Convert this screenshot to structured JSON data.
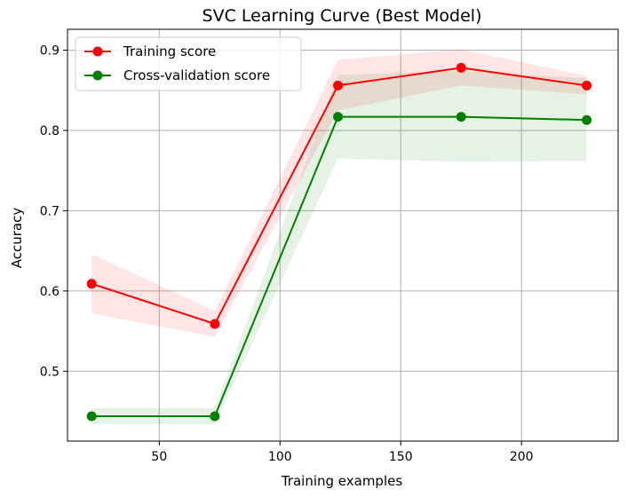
{
  "chart_data": {
    "type": "line",
    "title": "SVC Learning Curve (Best Model)",
    "xlabel": "Training examples",
    "ylabel": "Accuracy",
    "xlim": [
      12,
      240
    ],
    "ylim": [
      0.413,
      0.926
    ],
    "xticks": [
      50,
      100,
      150,
      200
    ],
    "yticks": [
      0.5,
      0.6,
      0.7,
      0.8,
      0.9
    ],
    "xtick_labels": [
      "50",
      "100",
      "150",
      "200"
    ],
    "ytick_labels": [
      "0.5",
      "0.6",
      "0.7",
      "0.8",
      "0.9"
    ],
    "grid": true,
    "legend_position": "upper-left",
    "series": [
      {
        "name": "Training score",
        "color": "#ff0000",
        "band_color": "#ff0000",
        "x": [
          22,
          73,
          124,
          175,
          227
        ],
        "y": [
          0.609,
          0.559,
          0.856,
          0.878,
          0.856
        ],
        "lower": [
          0.572,
          0.543,
          0.825,
          0.856,
          0.845
        ],
        "upper": [
          0.646,
          0.575,
          0.888,
          0.901,
          0.868
        ]
      },
      {
        "name": "Cross-validation score",
        "color": "#008000",
        "band_color": "#008000",
        "x": [
          22,
          73,
          124,
          175,
          227
        ],
        "y": [
          0.444,
          0.444,
          0.817,
          0.817,
          0.813
        ],
        "lower": [
          0.434,
          0.434,
          0.765,
          0.761,
          0.762
        ],
        "upper": [
          0.454,
          0.454,
          0.869,
          0.874,
          0.865
        ]
      }
    ]
  }
}
